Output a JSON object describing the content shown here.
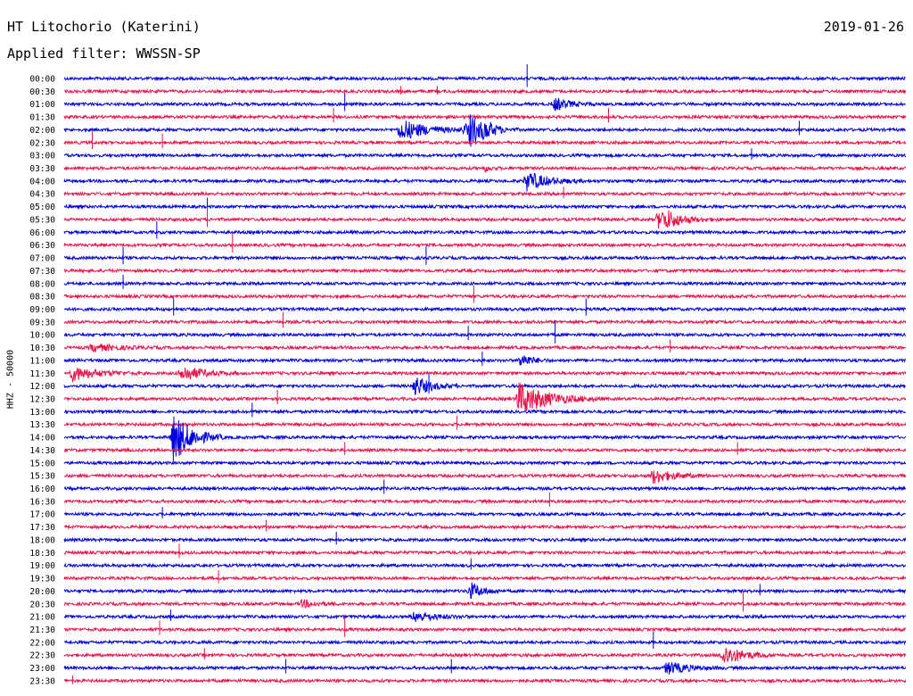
{
  "header": {
    "station": "HT Litochorio (Katerini)",
    "date": "2019-01-26",
    "filter": "Applied filter: WWSSN-SP"
  },
  "chart_data": {
    "type": "line",
    "ylabel": "HHZ - 50000",
    "colors": [
      "#0000dd",
      "#e8144a"
    ],
    "row_labels": [
      "00:00",
      "00:30",
      "01:00",
      "01:30",
      "02:00",
      "02:30",
      "03:00",
      "03:30",
      "04:00",
      "04:30",
      "05:00",
      "05:30",
      "06:00",
      "06:30",
      "07:00",
      "07:30",
      "08:00",
      "08:30",
      "09:00",
      "09:30",
      "10:00",
      "10:30",
      "11:00",
      "11:30",
      "12:00",
      "12:30",
      "13:00",
      "13:30",
      "14:00",
      "14:30",
      "15:00",
      "15:30",
      "16:00",
      "16:30",
      "17:00",
      "17:30",
      "18:00",
      "18:30",
      "19:00",
      "19:30",
      "20:00",
      "20:30",
      "21:00",
      "21:30",
      "22:00",
      "22:30",
      "23:00",
      "23:30"
    ],
    "events": [
      {
        "row": 4,
        "minute": 12,
        "amplitude": 12,
        "duration_min": 2.5
      },
      {
        "row": 4,
        "minute": 14.5,
        "amplitude": 8,
        "duration_min": 1.2
      },
      {
        "row": 4,
        "minute": 14.5,
        "amplitude": 8,
        "duration_min": 1.2
      },
      {
        "row": 2,
        "minute": 17.5,
        "amplitude": 7,
        "duration_min": 1.5
      },
      {
        "row": 4,
        "minute": 15,
        "amplitude": 7,
        "duration_min": 1.2
      },
      {
        "row": 4,
        "minute": 14.3,
        "amplitude": 5,
        "duration_min": 1.0
      },
      {
        "row": 8,
        "minute": 16.5,
        "amplitude": 11,
        "duration_min": 2.0
      },
      {
        "row": 11,
        "minute": 21.2,
        "amplitude": 10,
        "duration_min": 2.2
      },
      {
        "row": 21,
        "minute": 1.0,
        "amplitude": 4,
        "duration_min": 2.5
      },
      {
        "row": 22,
        "minute": 16.3,
        "amplitude": 8,
        "duration_min": 1.0
      },
      {
        "row": 23,
        "minute": 0.3,
        "amplitude": 8,
        "duration_min": 2.5
      },
      {
        "row": 23,
        "minute": 4.2,
        "amplitude": 9,
        "duration_min": 2.0
      },
      {
        "row": 24,
        "minute": 12.5,
        "amplitude": 11,
        "duration_min": 1.6
      },
      {
        "row": 25,
        "minute": 16.2,
        "amplitude": 18,
        "duration_min": 3.0
      },
      {
        "row": 28,
        "minute": 3.9,
        "amplitude": 28,
        "duration_min": 1.8
      },
      {
        "row": 31,
        "minute": 21.0,
        "amplitude": 8,
        "duration_min": 2.0
      },
      {
        "row": 40,
        "minute": 14.5,
        "amplitude": 9,
        "duration_min": 1.2
      },
      {
        "row": 41,
        "minute": 8.5,
        "amplitude": 4,
        "duration_min": 1.5
      },
      {
        "row": 42,
        "minute": 12.5,
        "amplitude": 6,
        "duration_min": 2.0
      },
      {
        "row": 45,
        "minute": 23.5,
        "amplitude": 11,
        "duration_min": 2.0
      },
      {
        "row": 46,
        "minute": 21.5,
        "amplitude": 7,
        "duration_min": 2.0
      },
      {
        "row": 7,
        "minute": 15.0,
        "amplitude": 3,
        "duration_min": 0.6
      },
      {
        "row": 11,
        "minute": 21.5,
        "amplitude": 4,
        "duration_min": 1.0
      }
    ],
    "spikes": [
      {
        "row": 0,
        "minute": 16.5,
        "amplitude": 16
      },
      {
        "row": 1,
        "minute": 12.0,
        "amplitude": 6
      },
      {
        "row": 1,
        "minute": 13.3,
        "amplitude": 6
      },
      {
        "row": 2,
        "minute": 10.0,
        "amplitude": 13
      },
      {
        "row": 3,
        "minute": 9.6,
        "amplitude": 10
      },
      {
        "row": 3,
        "minute": 19.4,
        "amplitude": 10
      },
      {
        "row": 4,
        "minute": 26.2,
        "amplitude": 10
      },
      {
        "row": 5,
        "minute": 1.0,
        "amplitude": 12
      },
      {
        "row": 5,
        "minute": 3.5,
        "amplitude": 10
      },
      {
        "row": 6,
        "minute": 24.5,
        "amplitude": 8
      },
      {
        "row": 9,
        "minute": 17.8,
        "amplitude": 8
      },
      {
        "row": 10,
        "minute": 5.1,
        "amplitude": 10
      },
      {
        "row": 11,
        "minute": 5.1,
        "amplitude": 14
      },
      {
        "row": 12,
        "minute": 3.3,
        "amplitude": 12
      },
      {
        "row": 13,
        "minute": 6.0,
        "amplitude": 14
      },
      {
        "row": 14,
        "minute": 2.1,
        "amplitude": 12
      },
      {
        "row": 14,
        "minute": 12.9,
        "amplitude": 13
      },
      {
        "row": 16,
        "minute": 2.1,
        "amplitude": 10
      },
      {
        "row": 17,
        "minute": 14.6,
        "amplitude": 12
      },
      {
        "row": 18,
        "minute": 3.9,
        "amplitude": 12
      },
      {
        "row": 18,
        "minute": 18.6,
        "amplitude": 12
      },
      {
        "row": 19,
        "minute": 7.8,
        "amplitude": 11
      },
      {
        "row": 20,
        "minute": 14.4,
        "amplitude": 10
      },
      {
        "row": 20,
        "minute": 17.5,
        "amplitude": 16
      },
      {
        "row": 21,
        "minute": 21.6,
        "amplitude": 9
      },
      {
        "row": 22,
        "minute": 14.9,
        "amplitude": 10
      },
      {
        "row": 24,
        "minute": 13.0,
        "amplitude": 14
      },
      {
        "row": 25,
        "minute": 7.6,
        "amplitude": 10
      },
      {
        "row": 26,
        "minute": 6.7,
        "amplitude": 10
      },
      {
        "row": 27,
        "minute": 14.0,
        "amplitude": 10
      },
      {
        "row": 29,
        "minute": 10.0,
        "amplitude": 9
      },
      {
        "row": 29,
        "minute": 24.0,
        "amplitude": 9
      },
      {
        "row": 32,
        "minute": 11.4,
        "amplitude": 10
      },
      {
        "row": 33,
        "minute": 17.3,
        "amplitude": 10
      },
      {
        "row": 34,
        "minute": 3.5,
        "amplitude": 8
      },
      {
        "row": 35,
        "minute": 7.2,
        "amplitude": 8
      },
      {
        "row": 36,
        "minute": 9.7,
        "amplitude": 9
      },
      {
        "row": 37,
        "minute": 4.1,
        "amplitude": 10
      },
      {
        "row": 38,
        "minute": 14.5,
        "amplitude": 8
      },
      {
        "row": 39,
        "minute": 5.5,
        "amplitude": 9
      },
      {
        "row": 40,
        "minute": 24.8,
        "amplitude": 8
      },
      {
        "row": 41,
        "minute": 24.2,
        "amplitude": 14
      },
      {
        "row": 42,
        "minute": 3.8,
        "amplitude": 8
      },
      {
        "row": 43,
        "minute": 3.4,
        "amplitude": 10
      },
      {
        "row": 43,
        "minute": 10.0,
        "amplitude": 14
      },
      {
        "row": 44,
        "minute": 21.0,
        "amplitude": 12
      },
      {
        "row": 45,
        "minute": 5.0,
        "amplitude": 8
      },
      {
        "row": 46,
        "minute": 7.9,
        "amplitude": 10
      },
      {
        "row": 46,
        "minute": 13.8,
        "amplitude": 10
      },
      {
        "row": 47,
        "minute": 0.3,
        "amplitude": 6
      }
    ]
  }
}
